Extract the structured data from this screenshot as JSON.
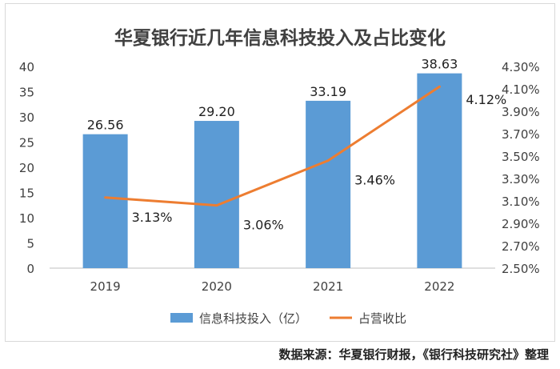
{
  "chart_data": {
    "type": "bar",
    "title": "华夏银行近几年信息科技投入及占比变化",
    "categories": [
      "2019",
      "2020",
      "2021",
      "2022"
    ],
    "series": [
      {
        "name": "信息科技投入（亿）",
        "type": "bar",
        "axis": "left",
        "values": [
          26.56,
          29.2,
          33.19,
          38.63
        ],
        "labels": [
          "26.56",
          "29.20",
          "33.19",
          "38.63"
        ]
      },
      {
        "name": "占营收比",
        "type": "line",
        "axis": "right",
        "values": [
          3.13,
          3.06,
          3.46,
          4.12
        ],
        "labels": [
          "3.13%",
          "3.06%",
          "3.46%",
          "4.12%"
        ]
      }
    ],
    "y_left": {
      "min": 0,
      "max": 40,
      "ticks": [
        "0",
        "5",
        "10",
        "15",
        "20",
        "25",
        "30",
        "35",
        "40"
      ]
    },
    "y_right": {
      "min": 2.5,
      "max": 4.3,
      "ticks": [
        "2.50%",
        "2.70%",
        "2.90%",
        "3.10%",
        "3.30%",
        "3.50%",
        "3.70%",
        "3.90%",
        "4.10%",
        "4.30%"
      ]
    },
    "legend_position": "bottom",
    "colors": {
      "bar": "#5b9bd5",
      "line": "#ed7d31"
    }
  },
  "footer": {
    "source": "数据来源：华夏银行财报，《银行科技研究社》整理"
  }
}
